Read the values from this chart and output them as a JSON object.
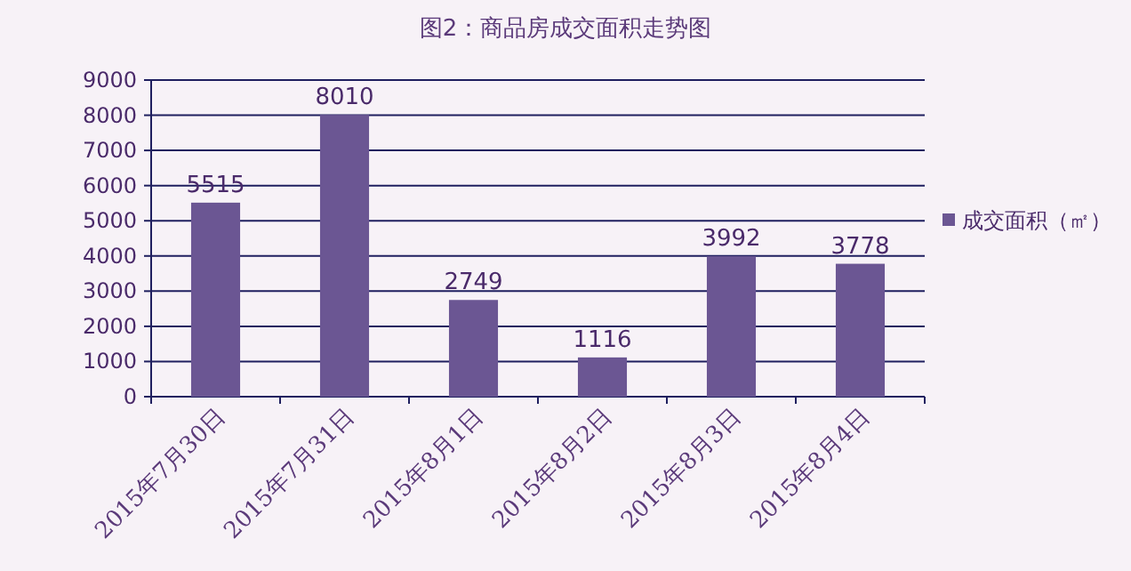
{
  "chart_data": {
    "type": "bar",
    "title": "图2：商品房成交面积走势图",
    "categories": [
      "2015年7月30日",
      "2015年7月31日",
      "2015年8月1日",
      "2015年8月2日",
      "2015年8月3日",
      "2015年8月4日"
    ],
    "series": [
      {
        "name": "成交面积（㎡）",
        "color": "#6b5693",
        "values": [
          5515,
          8010,
          2749,
          1116,
          3992,
          3778
        ]
      }
    ],
    "ylim": [
      0,
      9000
    ],
    "yticks": [
      0,
      1000,
      2000,
      3000,
      4000,
      5000,
      6000,
      7000,
      8000,
      9000
    ],
    "grid": "y",
    "legend": "right",
    "data_labels": true
  }
}
